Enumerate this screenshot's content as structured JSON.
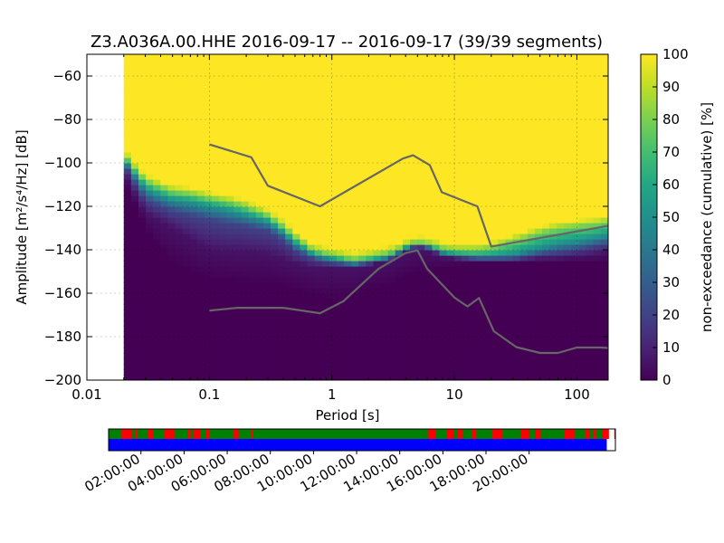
{
  "chart_data": {
    "type": "heatmap",
    "title": "Z3.A036A.00.HHE   2016-09-17 -- 2016-09-17  (39/39 segments)",
    "xlabel": "Period [s]",
    "ylabel": "Amplitude [m²/s⁴/Hz] [dB]",
    "x_scale": "log",
    "xlim": [
      0.01,
      180
    ],
    "ylim": [
      -200,
      -50
    ],
    "x_ticks": [
      {
        "value": 0.01,
        "label": "0.01"
      },
      {
        "value": 0.1,
        "label": "0.1"
      },
      {
        "value": 1,
        "label": "1"
      },
      {
        "value": 10,
        "label": "10"
      },
      {
        "value": 100,
        "label": "100"
      }
    ],
    "y_ticks": [
      -60,
      -80,
      -100,
      -120,
      -140,
      -160,
      -180,
      -200
    ],
    "grid": true,
    "colorbar": {
      "label": "non-exceedance (cumulative) [%]",
      "min": 0,
      "max": 100,
      "ticks": [
        0,
        10,
        20,
        30,
        40,
        50,
        60,
        70,
        80,
        90,
        100
      ],
      "colormap": "viridis"
    },
    "data_period_min": 0.02,
    "psd_bands": {
      "period": [
        0.02,
        0.025,
        0.03,
        0.04,
        0.05,
        0.07,
        0.1,
        0.15,
        0.2,
        0.3,
        0.4,
        0.5,
        0.7,
        1,
        1.5,
        2,
        3,
        4,
        5,
        6,
        8,
        10,
        15,
        20,
        30,
        50,
        70,
        100,
        150,
        180
      ],
      "p0": [
        -110,
        -120,
        -130,
        -140,
        -146,
        -150,
        -153,
        -154,
        -155,
        -155,
        -156,
        -158,
        -161,
        -163,
        -162,
        -158,
        -156,
        -152,
        -150,
        -150,
        -148,
        -147,
        -146,
        -146,
        -146,
        -146,
        -146,
        -146,
        -146,
        -145
      ],
      "p5": [
        -104,
        -115,
        -123,
        -127,
        -130,
        -135,
        -140,
        -141,
        -141,
        -142,
        -144,
        -146,
        -148,
        -148,
        -148,
        -147,
        -145,
        -141,
        -139,
        -140,
        -143,
        -144,
        -145,
        -145,
        -145,
        -144,
        -144,
        -143,
        -142,
        -141
      ],
      "p20": [
        -100,
        -110,
        -117,
        -120,
        -122,
        -124,
        -126,
        -128,
        -129,
        -131,
        -135,
        -140,
        -144,
        -146,
        -147,
        -146,
        -144,
        -140,
        -138,
        -139,
        -142,
        -143,
        -144,
        -144,
        -144,
        -142,
        -141,
        -140,
        -138,
        -137
      ],
      "p50": [
        -98,
        -106,
        -112,
        -115,
        -117,
        -118,
        -120,
        -122,
        -124,
        -127,
        -132,
        -137,
        -142,
        -144,
        -146,
        -145,
        -143,
        -139,
        -137,
        -138,
        -141,
        -142,
        -143,
        -143,
        -142,
        -139,
        -137,
        -136,
        -134,
        -133
      ],
      "p80": [
        -96,
        -103,
        -108,
        -111,
        -113,
        -114,
        -116,
        -118,
        -120,
        -124,
        -129,
        -134,
        -140,
        -142,
        -144,
        -143,
        -141,
        -138,
        -136,
        -137,
        -139,
        -140,
        -140,
        -139,
        -136,
        -132,
        -130,
        -129,
        -128,
        -127
      ]
    },
    "series": [
      {
        "x": [
          0.1,
          0.22,
          0.3,
          0.8,
          3.8,
          4.6,
          6.3,
          7.9,
          15.4,
          20,
          180
        ],
        "y": [
          -91.5,
          -97.4,
          -110.5,
          -120.0,
          -98.0,
          -96.5,
          -101.0,
          -113.5,
          -120.0,
          -138.5,
          -129.0
        ]
      },
      {
        "x": [
          0.1,
          0.17,
          0.4,
          0.8,
          1.24,
          2.4,
          4.0,
          5.0,
          6.0,
          10.0,
          12.8,
          15.9,
          21.0,
          32.0,
          50.0,
          70.0,
          100.0,
          154.0,
          180
        ],
        "y": [
          -168.0,
          -166.7,
          -166.7,
          -169.2,
          -163.7,
          -148.8,
          -141.5,
          -140.3,
          -148.8,
          -162.0,
          -166.1,
          -162.2,
          -177.5,
          -184.8,
          -187.5,
          -187.5,
          -185.0,
          -185.0,
          -185.2
        ]
      }
    ],
    "timeline": {
      "tick_labels": [
        "02:00:00",
        "04:00:00",
        "06:00:00",
        "08:00:00",
        "10:00:00",
        "12:00:00",
        "14:00:00",
        "16:00:00",
        "18:00:00",
        "20:00:00"
      ],
      "tick_hours": [
        2,
        4,
        6,
        8,
        10,
        12,
        14,
        16,
        18,
        20
      ],
      "range_hours": [
        0.5,
        24.0
      ],
      "data_end_hour": 23.6,
      "colors": {
        "used": "#008000",
        "red": "#ff0000",
        "coverage": "#0000ff"
      },
      "red_intervals": [
        [
          1.1,
          1.6
        ],
        [
          1.75,
          1.85
        ],
        [
          2.3,
          2.55
        ],
        [
          3.1,
          3.55
        ],
        [
          4.15,
          4.3
        ],
        [
          4.45,
          4.75
        ],
        [
          5.0,
          5.2
        ],
        [
          6.3,
          6.55
        ],
        [
          7.1,
          7.2
        ],
        [
          15.3,
          15.65
        ],
        [
          16.2,
          16.5
        ],
        [
          16.7,
          16.9
        ],
        [
          17.35,
          17.55
        ],
        [
          18.3,
          18.75
        ],
        [
          19.6,
          20.0
        ],
        [
          20.3,
          20.55
        ],
        [
          21.65,
          22.1
        ],
        [
          22.6,
          22.8
        ],
        [
          22.95,
          23.1
        ],
        [
          23.4,
          23.7
        ],
        [
          23.95,
          24.0
        ]
      ]
    }
  }
}
